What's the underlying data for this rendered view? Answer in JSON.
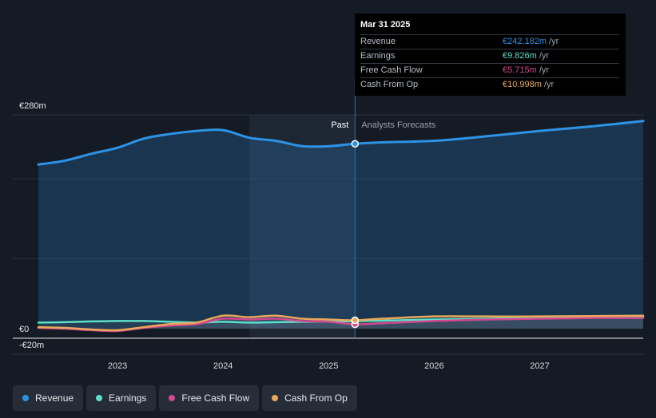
{
  "chart_data": {
    "type": "line",
    "currency_unit": "€m",
    "ylim": [
      -20,
      280
    ],
    "y_tick_labels": [
      "€280m",
      "€0",
      "-€20m"
    ],
    "y_ticks": [
      280,
      0,
      -20
    ],
    "x_tick_labels": [
      "2023",
      "2024",
      "2025",
      "2026",
      "2027"
    ],
    "x_ticks": [
      2023,
      2024,
      2025,
      2026,
      2027
    ],
    "xlim": [
      2022.25,
      2027.98
    ],
    "past_label": "Past",
    "forecast_label": "Analysts Forecasts",
    "divider_x": 2025.25,
    "highlight_start": 2024.25,
    "series": [
      {
        "name": "Revenue",
        "color": "#2d93e6",
        "values": [
          [
            2022.25,
            215
          ],
          [
            2022.5,
            220
          ],
          [
            2022.75,
            229
          ],
          [
            2023,
            237
          ],
          [
            2023.25,
            249
          ],
          [
            2023.5,
            255
          ],
          [
            2023.75,
            259
          ],
          [
            2024,
            260
          ],
          [
            2024.25,
            250
          ],
          [
            2024.5,
            246
          ],
          [
            2024.75,
            239
          ],
          [
            2025,
            239
          ],
          [
            2025.25,
            242.182
          ],
          [
            2025.5,
            244
          ],
          [
            2026,
            246
          ],
          [
            2026.5,
            252
          ],
          [
            2027,
            259
          ],
          [
            2027.5,
            265
          ],
          [
            2027.98,
            272
          ]
        ]
      },
      {
        "name": "Earnings",
        "color": "#5ce0c8",
        "values": [
          [
            2022.25,
            8
          ],
          [
            2022.5,
            8.5
          ],
          [
            2022.75,
            9.5
          ],
          [
            2023,
            10
          ],
          [
            2023.25,
            10
          ],
          [
            2023.5,
            9
          ],
          [
            2023.75,
            8
          ],
          [
            2024,
            9
          ],
          [
            2024.25,
            8
          ],
          [
            2024.5,
            8.5
          ],
          [
            2024.75,
            9
          ],
          [
            2025,
            9.5
          ],
          [
            2025.25,
            9.826
          ],
          [
            2025.5,
            10.5
          ],
          [
            2026,
            12
          ],
          [
            2026.5,
            13
          ],
          [
            2027,
            14
          ],
          [
            2027.5,
            15
          ],
          [
            2027.98,
            16
          ]
        ]
      },
      {
        "name": "Free Cash Flow",
        "color": "#d2488f",
        "values": [
          [
            2022.25,
            1
          ],
          [
            2022.5,
            0
          ],
          [
            2022.75,
            -2
          ],
          [
            2023,
            -3
          ],
          [
            2023.25,
            1
          ],
          [
            2023.5,
            4
          ],
          [
            2023.75,
            6
          ],
          [
            2024,
            13
          ],
          [
            2024.25,
            12
          ],
          [
            2024.5,
            13
          ],
          [
            2024.75,
            10
          ],
          [
            2025,
            9
          ],
          [
            2025.25,
            5.715
          ],
          [
            2025.5,
            7
          ],
          [
            2026,
            10
          ],
          [
            2026.5,
            12
          ],
          [
            2027,
            13
          ],
          [
            2027.5,
            14
          ],
          [
            2027.98,
            14
          ]
        ]
      },
      {
        "name": "Cash From Op",
        "color": "#e9a85a",
        "values": [
          [
            2022.25,
            2
          ],
          [
            2022.5,
            1
          ],
          [
            2022.75,
            -1
          ],
          [
            2023,
            -2
          ],
          [
            2023.25,
            2
          ],
          [
            2023.5,
            6
          ],
          [
            2023.75,
            8
          ],
          [
            2024,
            17
          ],
          [
            2024.25,
            15
          ],
          [
            2024.5,
            17
          ],
          [
            2024.75,
            13
          ],
          [
            2025,
            12
          ],
          [
            2025.25,
            10.998
          ],
          [
            2025.5,
            13
          ],
          [
            2026,
            16
          ],
          [
            2026.5,
            16
          ],
          [
            2027,
            16
          ],
          [
            2027.5,
            16.5
          ],
          [
            2027.98,
            17
          ]
        ]
      }
    ]
  },
  "tooltip": {
    "date": "Mar 31 2025",
    "rows": [
      {
        "name": "Revenue",
        "value": "€242.182m",
        "unit": "/yr",
        "color": "#2d93e6"
      },
      {
        "name": "Earnings",
        "value": "€9.826m",
        "unit": "/yr",
        "color": "#5ce0c8"
      },
      {
        "name": "Free Cash Flow",
        "value": "€5.715m",
        "unit": "/yr",
        "color": "#d2488f"
      },
      {
        "name": "Cash From Op",
        "value": "€10.998m",
        "unit": "/yr",
        "color": "#e9a85a"
      }
    ]
  },
  "legend": [
    {
      "label": "Revenue",
      "color": "#2d93e6"
    },
    {
      "label": "Earnings",
      "color": "#5ce0c8"
    },
    {
      "label": "Free Cash Flow",
      "color": "#d2488f"
    },
    {
      "label": "Cash From Op",
      "color": "#e9a85a"
    }
  ]
}
